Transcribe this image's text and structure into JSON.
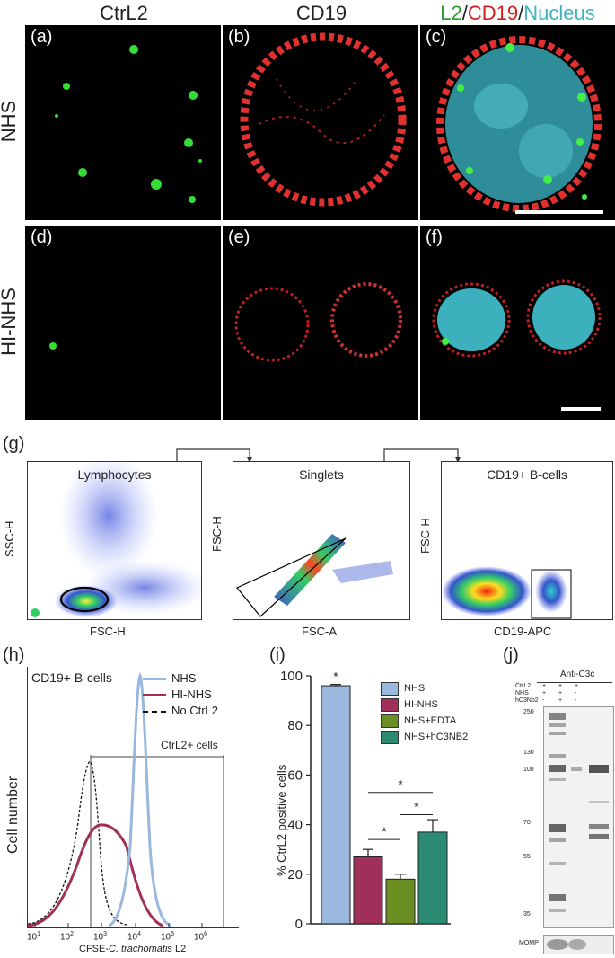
{
  "panels": {
    "col_headers": [
      "CtrL2",
      "CD19"
    ],
    "merge_header": {
      "l2": "L2",
      "sep1": "/",
      "cd19": "CD19",
      "sep2": "/",
      "nucleus": "Nucleus"
    },
    "row_labels": [
      "NHS",
      "HI-NHS"
    ],
    "letters": [
      "(a)",
      "(b)",
      "(c)",
      "(d)",
      "(e)",
      "(f)",
      "(g)",
      "(h)",
      "(i)",
      "(j)"
    ]
  },
  "colors": {
    "green": "#2a9e2a",
    "red": "#d02020",
    "cyan": "#3bb6c0",
    "nhs": "#9ab7dd",
    "hinhs": "#a0305a",
    "edta": "#6b8e23",
    "hc3nb2": "#2a8a72"
  },
  "gating": {
    "plots": [
      {
        "title": "Lymphocytes",
        "ylabel": "SSC-H",
        "xlabel": "FSC-H"
      },
      {
        "title": "Singlets",
        "ylabel": "FSC-H",
        "xlabel": "FSC-A"
      },
      {
        "title": "CD19+ B-cells",
        "ylabel": "FSC-H",
        "xlabel": "CD19-APC"
      }
    ]
  },
  "histogram": {
    "title": "CD19+ B-cells",
    "legend": [
      "NHS",
      "HI-NHS",
      "No CtrL2"
    ],
    "gate_label": "CtrL2+ cells",
    "ylabel": "Cell number",
    "xlabel_prefix": "CFSE-",
    "xlabel_italic": "C. trachomatis",
    "xlabel_suffix": " L2",
    "xticks": [
      "10",
      "10",
      "10",
      "10",
      "10",
      "10"
    ],
    "xtick_exps": [
      "1",
      "2",
      "3",
      "4",
      "5",
      "6"
    ]
  },
  "chart_data": {
    "type": "bar",
    "categories": [
      "NHS",
      "HI-NHS",
      "NHS+EDTA",
      "NHS+hC3NB2"
    ],
    "values": [
      96,
      27,
      18,
      37
    ],
    "errors": [
      0.5,
      3,
      2,
      5
    ],
    "ylabel": "% CtrL2 positive cells",
    "ylim": [
      0,
      100
    ],
    "yticks": [
      "0",
      "20",
      "40",
      "60",
      "80",
      "100"
    ],
    "significance": "*",
    "legend": [
      "NHS",
      "HI-NHS",
      "NHS+EDTA",
      "NHS+hC3NB2"
    ]
  },
  "blot": {
    "title": "Anti-C3c",
    "rows": [
      {
        "label": "CtrL2",
        "values": [
          "+",
          "+",
          "+"
        ]
      },
      {
        "label": "NHS",
        "values": [
          "+",
          "+",
          "-"
        ]
      },
      {
        "label": "hC3Nb2",
        "values": [
          "-",
          "+",
          "-"
        ]
      }
    ],
    "markers": [
      "250",
      "130",
      "100",
      "70",
      "55",
      "35"
    ],
    "bottom_label": "MOMP"
  }
}
